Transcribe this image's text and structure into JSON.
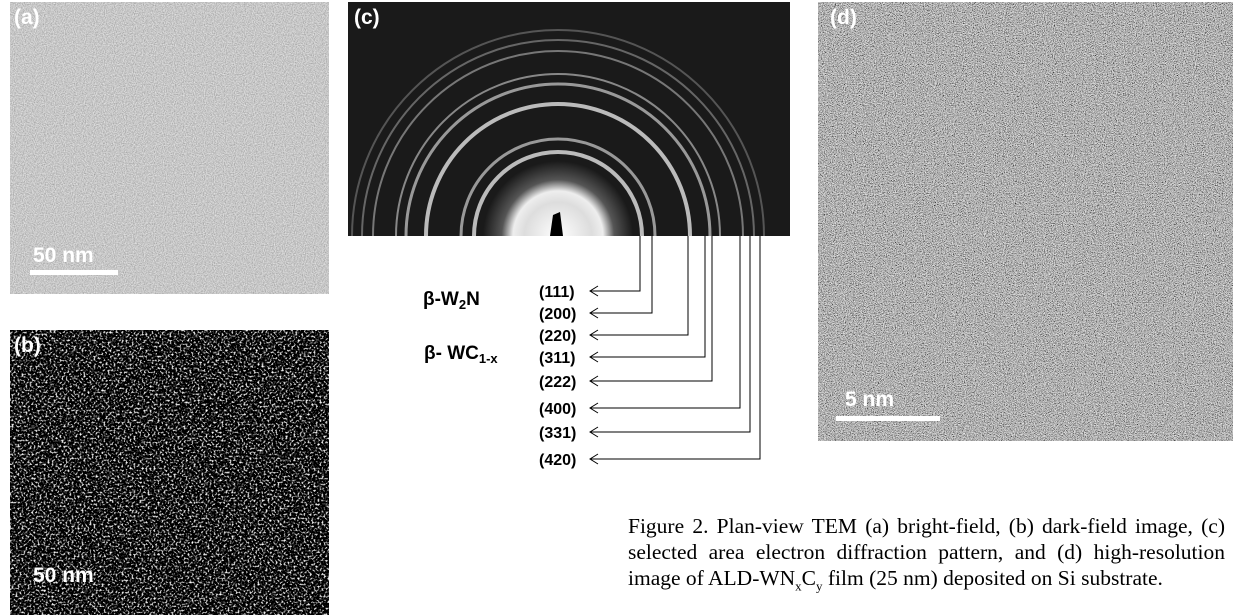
{
  "panels": [
    {
      "label": "(a)",
      "scale_bar": "50 nm"
    },
    {
      "label": "(b)",
      "scale_bar": "50 nm"
    },
    {
      "label": "(c)"
    },
    {
      "label": "(d)",
      "scale_bar": "5 nm"
    }
  ],
  "diffraction": {
    "phases": [
      {
        "parts": [
          "β-W",
          "2",
          "N"
        ]
      },
      {
        "parts": [
          "β- WC",
          "1-x"
        ]
      }
    ],
    "indices": [
      "(111)",
      "(200)",
      "(220)",
      "(311)",
      "(222)",
      "(400)",
      "(331)",
      "(420)"
    ]
  },
  "caption": {
    "parts": [
      "Figure 2. Plan-view TEM (a) bright-field, (b) dark-field image, (c) selected area electron diffraction pattern, and (d) high-resolution image of ALD-WN",
      "x",
      "C",
      "y",
      " film (25 nm) deposited on Si substrate."
    ]
  }
}
